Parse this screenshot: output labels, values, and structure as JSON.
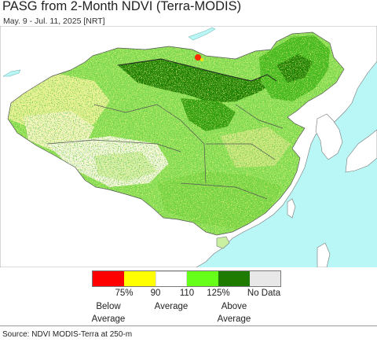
{
  "title": "PASG from 2-Month NDVI (Terra-MODIS)",
  "subtitle": "May. 9 - Jul. 11, 2025 [NRT]",
  "colors": {
    "ocean": "#b9f7f7",
    "land_outside": "#ffffff",
    "below_red": "#ff0000",
    "below_yellow": "#ffff00",
    "average_white": "#ffffff",
    "above_light_green": "#66ff1a",
    "above_dark_green": "#1e7b00",
    "no_data": "#e8e8e8",
    "border": "#555555"
  },
  "legend": {
    "swatches": [
      {
        "name": "below-75",
        "color": "#ff0000"
      },
      {
        "name": "75-90",
        "color": "#ffff00"
      },
      {
        "name": "90-110",
        "color": "#ffffff"
      },
      {
        "name": "110-125",
        "color": "#66ff1a"
      },
      {
        "name": "above-125",
        "color": "#1e7b00"
      },
      {
        "name": "no-data",
        "color": "#e8e8e8"
      }
    ],
    "ticks": [
      "75%",
      "90",
      "110",
      "125%"
    ],
    "no_data_label": "No Data",
    "below_label": [
      "Below",
      "Average"
    ],
    "average_label": "Average",
    "above_label": [
      "Above",
      "Average"
    ]
  },
  "source": "Source: NDVI MODIS-Terra at 250-m"
}
